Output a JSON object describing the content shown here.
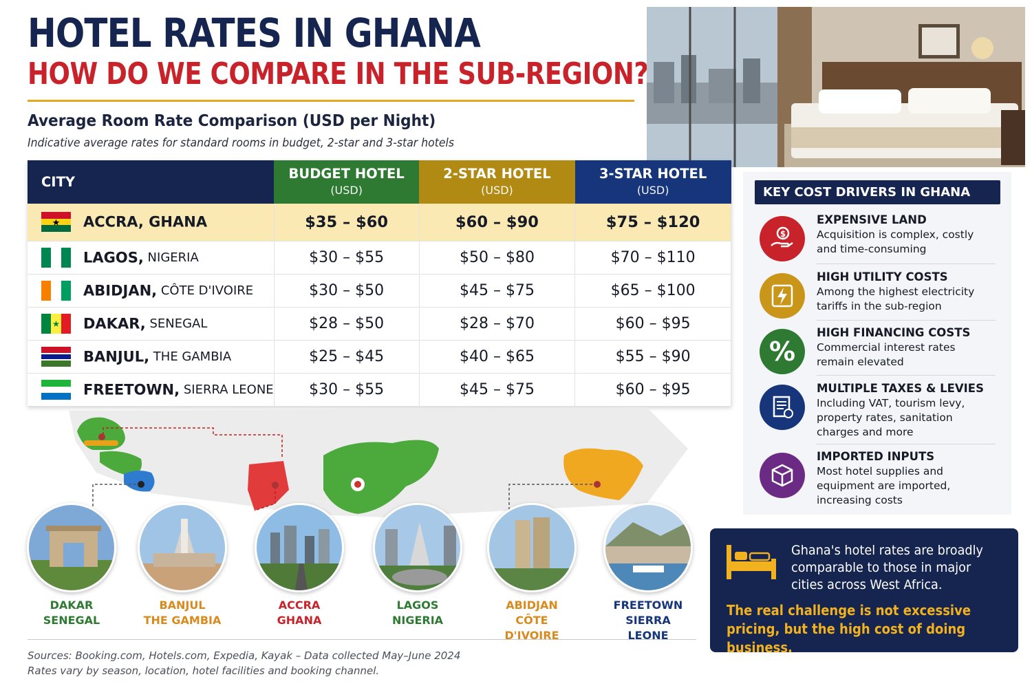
{
  "header": {
    "title": "HOTEL RATES IN GHANA",
    "subtitle": "HOW DO WE COMPARE IN THE SUB-REGION?",
    "section_title": "Average Room Rate Comparison (USD per Night)",
    "section_note": "Indicative average rates for standard rooms in budget, 2-star and 3-star hotels"
  },
  "table": {
    "columns": [
      {
        "label": "CITY",
        "unit": ""
      },
      {
        "label": "BUDGET HOTEL",
        "unit": "(USD)"
      },
      {
        "label": "2-STAR HOTEL",
        "unit": "(USD)"
      },
      {
        "label": "3-STAR HOTEL",
        "unit": "(USD)"
      }
    ],
    "rows": [
      {
        "city": "ACCRA,",
        "country": " GHANA",
        "budget": "$35 – $60",
        "two_star": "$60 – $90",
        "three_star": "$75 – $120"
      },
      {
        "city": "LAGOS,",
        "country": " NIGERIA",
        "budget": "$30 – $55",
        "two_star": "$50 – $80",
        "three_star": "$70 – $110"
      },
      {
        "city": "ABIDJAN,",
        "country": " CÔTE D'IVOIRE",
        "budget": "$30 – $50",
        "two_star": "$45 – $75",
        "three_star": "$65 – $100"
      },
      {
        "city": "DAKAR,",
        "country": " SENEGAL",
        "budget": "$28 – $50",
        "two_star": "$28 – $70",
        "three_star": "$60 – $95"
      },
      {
        "city": "BANJUL,",
        "country": " THE GAMBIA",
        "budget": "$25 – $45",
        "two_star": "$40 – $65",
        "three_star": "$55 – $90"
      },
      {
        "city": "FREETOWN,",
        "country": " SIERRA LEONE",
        "budget": "$30 – $55",
        "two_star": "$45 – $75",
        "three_star": "$60 – $95"
      }
    ]
  },
  "landmarks": [
    {
      "city": "DAKAR",
      "country": "SENEGAL",
      "color": "#2f7a33"
    },
    {
      "city": "BANJUL",
      "country": "THE GAMBIA",
      "color": "#d98a1c"
    },
    {
      "city": "ACCRA",
      "country": "GHANA",
      "color": "#c8232b"
    },
    {
      "city": "LAGOS",
      "country": "NIGERIA",
      "color": "#2f7a33"
    },
    {
      "city": "ABIDJAN",
      "country": "CÔTE D'IVOIRE",
      "color": "#d98a1c"
    },
    {
      "city": "FREETOWN",
      "country": "SIERRA LEONE",
      "color": "#16357a"
    }
  ],
  "sources": {
    "line1": "Sources: Booking.com, Hotels.com, Expedia, Kayak – Data collected May–June 2024",
    "line2": "Rates vary by season, location, hotel facilities and booking channel."
  },
  "drivers": {
    "heading": "KEY COST DRIVERS IN GHANA",
    "items": [
      {
        "title": "EXPENSIVE LAND",
        "desc": "Acquisition is complex, costly and time-consuming",
        "icon": "money-hand-icon",
        "color": "#c8232b"
      },
      {
        "title": "HIGH UTILITY COSTS",
        "desc": "Among the highest electricity tariffs in the sub-region",
        "icon": "lightning-icon",
        "color": "#c9961a"
      },
      {
        "title": "HIGH FINANCING COSTS",
        "desc": "Commercial interest rates remain elevated",
        "icon": "percent-icon",
        "color": "#2f7a33"
      },
      {
        "title": "MULTIPLE TAXES & LEVIES",
        "desc": "Including VAT, tourism levy, property rates, sanitation charges and more",
        "icon": "document-icon",
        "color": "#16357a"
      },
      {
        "title": "IMPORTED INPUTS",
        "desc": "Most hotel supplies and equipment are imported, increasing costs",
        "icon": "box-icon",
        "color": "#6b2a84"
      }
    ]
  },
  "callout": {
    "statement": "Ghana's hotel rates are broadly comparable to those in major cities across West Africa.",
    "conclusion": "The real challenge is not excessive pricing, but the high cost of doing business.",
    "accent": "#f2b21f"
  }
}
